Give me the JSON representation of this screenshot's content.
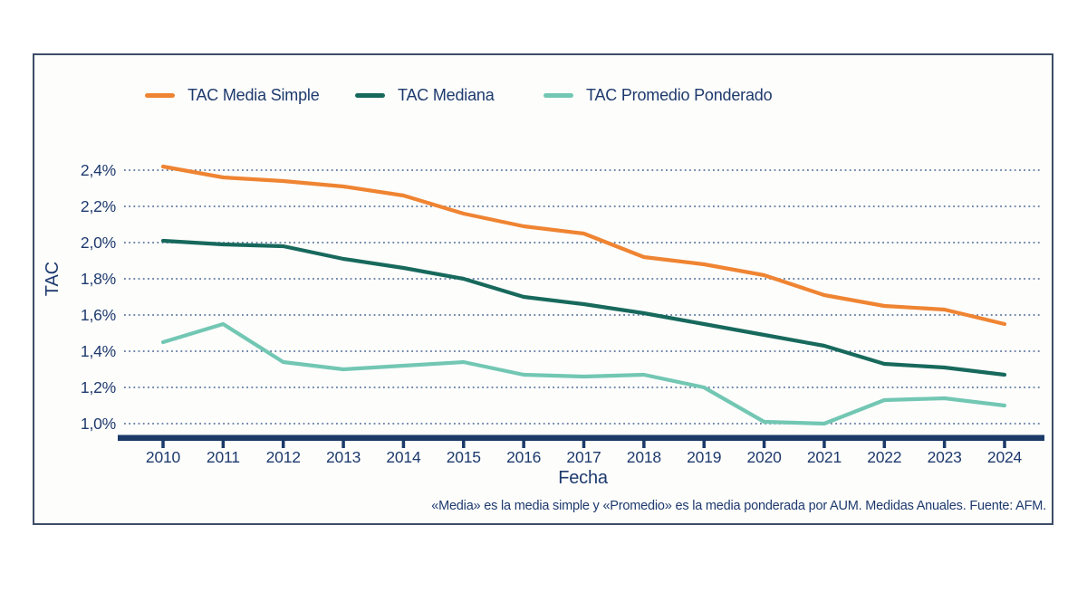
{
  "colors": {
    "text_navy": "#1e3a6d",
    "axis_navy": "#1b3a68",
    "gridline": "#42608f",
    "panel_border": "#3d4d68"
  },
  "chart_data": {
    "type": "line",
    "categories": [
      "2010",
      "2011",
      "2012",
      "2013",
      "2014",
      "2015",
      "2016",
      "2017",
      "2018",
      "2019",
      "2020",
      "2021",
      "2022",
      "2023",
      "2024"
    ],
    "series": [
      {
        "name": "TAC Media Simple",
        "color": "#ef8432",
        "values": [
          2.42,
          2.36,
          2.34,
          2.31,
          2.26,
          2.16,
          2.09,
          2.05,
          1.92,
          1.88,
          1.82,
          1.71,
          1.65,
          1.63,
          1.55
        ]
      },
      {
        "name": "TAC Mediana",
        "color": "#17695c",
        "values": [
          2.01,
          1.99,
          1.98,
          1.91,
          1.86,
          1.8,
          1.7,
          1.66,
          1.61,
          1.55,
          1.49,
          1.43,
          1.33,
          1.31,
          1.27
        ]
      },
      {
        "name": "TAC Promedio Ponderado",
        "color": "#72c7b3",
        "values": [
          1.45,
          1.55,
          1.34,
          1.3,
          1.32,
          1.34,
          1.27,
          1.26,
          1.27,
          1.2,
          1.01,
          1.0,
          1.13,
          1.14,
          1.1
        ]
      }
    ],
    "title": "",
    "xlabel": "Fecha",
    "ylabel": "TAC",
    "ylim": [
      1.0,
      2.4
    ],
    "yticks": [
      1.0,
      1.2,
      1.4,
      1.6,
      1.8,
      2.0,
      2.2,
      2.4
    ],
    "ytick_labels": [
      "1,0%",
      "1,2%",
      "1,4%",
      "1,6%",
      "1,8%",
      "2,0%",
      "2,2%",
      "2,4%"
    ],
    "grid": "horizontal-dotted",
    "legend_position": "top",
    "footnote": "«Media» es la media simple y «Promedio» es la media ponderada por AUM. Medidas Anuales. Fuente: AFM."
  }
}
